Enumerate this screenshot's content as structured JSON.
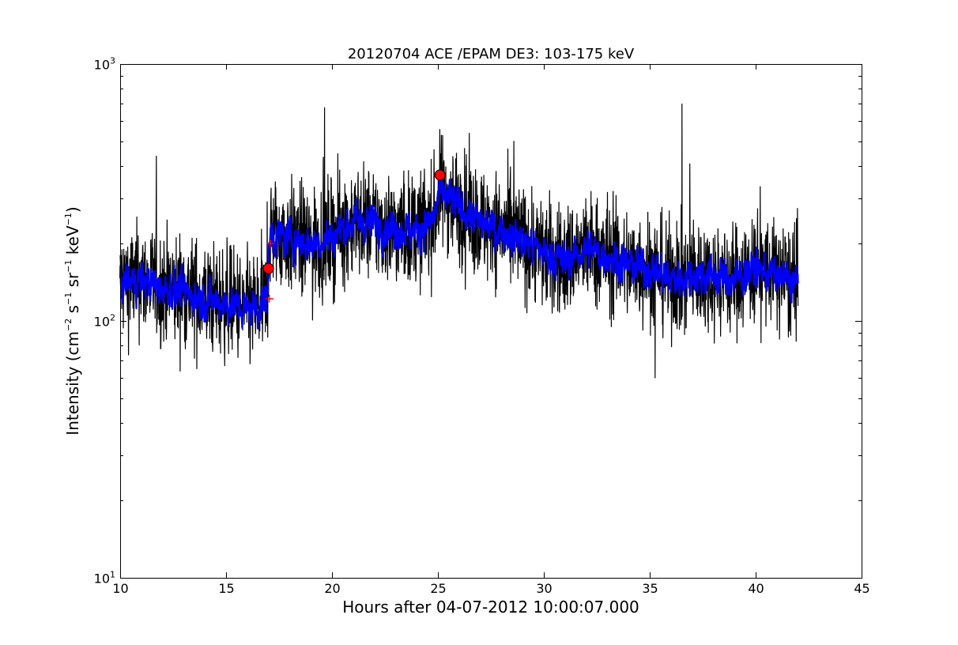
{
  "chart_data": {
    "type": "line",
    "title": "20120704 ACE /EPAM DE3: 103-175 keV",
    "xlabel": "Hours after 04-07-2012 10:00:07.000",
    "ylabel": {
      "prefix": "Intensity (cm",
      "exp1": "−2",
      "mid1": " s",
      "exp2": "−1",
      "mid2": " sr",
      "exp3": "−1",
      "mid3": " keV",
      "exp4": "−1",
      "suffix": ")"
    },
    "xlim": [
      10,
      45
    ],
    "ylim": [
      10,
      1000
    ],
    "yscale": "log",
    "grid": false,
    "x_ticks": [
      {
        "value": 10,
        "label": "10"
      },
      {
        "value": 15,
        "label": "15"
      },
      {
        "value": 20,
        "label": "20"
      },
      {
        "value": 25,
        "label": "25"
      },
      {
        "value": 30,
        "label": "30"
      },
      {
        "value": 35,
        "label": "35"
      },
      {
        "value": 40,
        "label": "40"
      },
      {
        "value": 45,
        "label": "45"
      }
    ],
    "y_ticks": [
      {
        "value": 10,
        "base": "10",
        "exp": "1"
      },
      {
        "value": 100,
        "base": "10",
        "exp": "2"
      },
      {
        "value": 1000,
        "base": "10",
        "exp": "3"
      }
    ],
    "series": [
      {
        "role": "raw",
        "color": "#000000",
        "x_range": [
          10,
          42
        ],
        "trend": [
          [
            10,
            140
          ],
          [
            11,
            145
          ],
          [
            12,
            135
          ],
          [
            13,
            130
          ],
          [
            14,
            122
          ],
          [
            15,
            118
          ],
          [
            16,
            110
          ],
          [
            16.9,
            118
          ],
          [
            17.1,
            220
          ],
          [
            18,
            210
          ],
          [
            19,
            200
          ],
          [
            20,
            215
          ],
          [
            21,
            245
          ],
          [
            22,
            240
          ],
          [
            23,
            225
          ],
          [
            24,
            225
          ],
          [
            24.8,
            250
          ],
          [
            25.1,
            320
          ],
          [
            26,
            280
          ],
          [
            27,
            240
          ],
          [
            28,
            225
          ],
          [
            29,
            205
          ],
          [
            30,
            185
          ],
          [
            31,
            170
          ],
          [
            32,
            190
          ],
          [
            33,
            180
          ],
          [
            34,
            165
          ],
          [
            35,
            160
          ],
          [
            36,
            145
          ],
          [
            37,
            150
          ],
          [
            38,
            150
          ],
          [
            39,
            145
          ],
          [
            40,
            160
          ],
          [
            41,
            150
          ],
          [
            42,
            140
          ]
        ],
        "noise_pct": 0.45
      },
      {
        "role": "smoothed",
        "color": "#0000ff",
        "x_range": [
          10,
          42
        ],
        "trend": [
          [
            10,
            140
          ],
          [
            11,
            145
          ],
          [
            12,
            135
          ],
          [
            13,
            130
          ],
          [
            14,
            122
          ],
          [
            15,
            118
          ],
          [
            16,
            110
          ],
          [
            16.9,
            118
          ],
          [
            17.1,
            220
          ],
          [
            18,
            210
          ],
          [
            19,
            200
          ],
          [
            20,
            215
          ],
          [
            21,
            245
          ],
          [
            22,
            240
          ],
          [
            23,
            225
          ],
          [
            24,
            225
          ],
          [
            24.8,
            250
          ],
          [
            25.1,
            320
          ],
          [
            26,
            280
          ],
          [
            27,
            240
          ],
          [
            28,
            225
          ],
          [
            29,
            205
          ],
          [
            30,
            185
          ],
          [
            31,
            170
          ],
          [
            32,
            190
          ],
          [
            33,
            180
          ],
          [
            34,
            165
          ],
          [
            35,
            160
          ],
          [
            36,
            145
          ],
          [
            37,
            150
          ],
          [
            38,
            150
          ],
          [
            39,
            145
          ],
          [
            40,
            160
          ],
          [
            41,
            150
          ],
          [
            42,
            140
          ]
        ],
        "noise_pct": 0.15
      }
    ],
    "markers": [
      {
        "x": 17.0,
        "y": 160,
        "color": "#ff0000",
        "shape": "circle"
      },
      {
        "x": 25.1,
        "y": 370,
        "color": "#ff0000",
        "shape": "circle"
      }
    ],
    "cross_markers": [
      {
        "x": 17.1,
        "y": 200,
        "color": "#ff0000"
      },
      {
        "x": 17.05,
        "y": 122,
        "color": "#ff0000"
      }
    ]
  }
}
